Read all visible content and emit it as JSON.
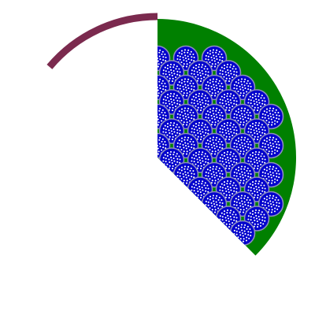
{
  "diagram": {
    "colors": {
      "background": "#ffffff",
      "sector_fill": "#008000",
      "arc_stroke": "#7b2a4e",
      "bundle_fill": "#0000cc",
      "bundle_outline": "#8c8cc0",
      "strand_fill": "#ffffff"
    },
    "sector": {
      "start_angle_deg": -90,
      "end_angle_deg": 45,
      "description_name": "green-sector"
    },
    "arc": {
      "start_angle_deg": -90,
      "end_angle_deg": -140
    },
    "bundle_pattern": {
      "rings": [
        {
          "count": 1,
          "radius_fraction": 0.0
        },
        {
          "count": 6,
          "radius_fraction": 0.28
        },
        {
          "count": 12,
          "radius_fraction": 0.58
        },
        {
          "count": 16,
          "radius_fraction": 0.82
        }
      ]
    }
  }
}
